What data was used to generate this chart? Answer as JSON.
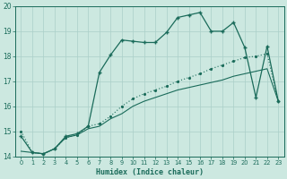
{
  "xlabel": "Humidex (Indice chaleur)",
  "background_color": "#cce8e0",
  "grid_color": "#aacfc8",
  "line_color": "#1a6b5a",
  "xlim": [
    -0.5,
    23.5
  ],
  "ylim": [
    14,
    20
  ],
  "yticks": [
    14,
    15,
    16,
    17,
    18,
    19,
    20
  ],
  "xticks": [
    0,
    1,
    2,
    3,
    4,
    5,
    6,
    7,
    8,
    9,
    10,
    11,
    12,
    13,
    14,
    15,
    16,
    17,
    18,
    19,
    20,
    21,
    22,
    23
  ],
  "s1_x": [
    0,
    1,
    2,
    3,
    4,
    5,
    6,
    7,
    8,
    9,
    10,
    11,
    12,
    13,
    14,
    15,
    16,
    17,
    18,
    19,
    20,
    21,
    22,
    23
  ],
  "s1_y": [
    15.0,
    14.15,
    14.1,
    14.3,
    14.75,
    14.85,
    15.2,
    15.3,
    15.6,
    16.0,
    16.3,
    16.5,
    16.65,
    16.8,
    17.0,
    17.15,
    17.3,
    17.5,
    17.65,
    17.8,
    17.95,
    18.0,
    18.1,
    16.2
  ],
  "s2_x": [
    0,
    1,
    2,
    3,
    4,
    5,
    6,
    7,
    8,
    9,
    10,
    11,
    12,
    13,
    14,
    15,
    16,
    17,
    18,
    19,
    20,
    21,
    22,
    23
  ],
  "s2_y": [
    14.8,
    14.15,
    14.1,
    14.3,
    14.8,
    14.9,
    15.2,
    17.35,
    18.05,
    18.65,
    18.6,
    18.55,
    18.55,
    18.95,
    19.55,
    19.65,
    19.75,
    19.0,
    19.0,
    19.35,
    18.35,
    16.35,
    18.4,
    16.2
  ],
  "s3_x": [
    0,
    1,
    2,
    3,
    4,
    5,
    6,
    7,
    8,
    9,
    10,
    11,
    12,
    13,
    14,
    15,
    16,
    17,
    18,
    19,
    20,
    21,
    22,
    23
  ],
  "s3_y": [
    14.2,
    14.15,
    14.1,
    14.3,
    14.75,
    14.85,
    15.1,
    15.2,
    15.5,
    15.7,
    16.0,
    16.2,
    16.35,
    16.5,
    16.65,
    16.75,
    16.85,
    16.95,
    17.05,
    17.2,
    17.3,
    17.4,
    17.5,
    16.2
  ]
}
